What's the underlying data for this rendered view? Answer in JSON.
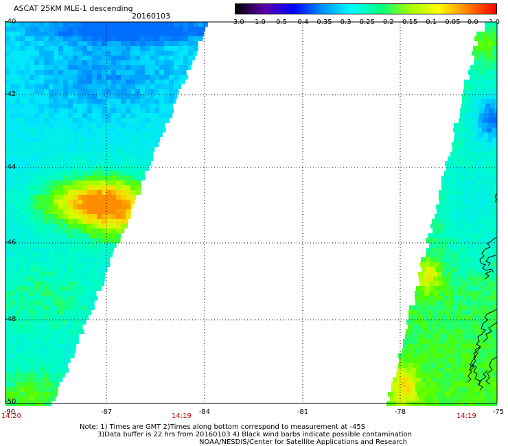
{
  "header": {
    "title": "ASCAT 25KM MLE-1 descending",
    "date": "20160103"
  },
  "colorbar": {
    "labels": [
      "-3.0",
      "-1.0",
      "-0.5",
      "-0.4",
      "-0.35",
      "-0.3",
      "-0.25",
      "-0.2",
      "-0.15",
      "-0.1",
      "-0.05",
      "0.0",
      "1.0"
    ],
    "colors": [
      "#000000",
      "#5a00a8",
      "#0000ff",
      "#0090ff",
      "#00ffff",
      "#00ff80",
      "#a0ff00",
      "#ffff00",
      "#ff8000",
      "#ff0000"
    ]
  },
  "axes": {
    "y_ticks": [
      "-40",
      "-42",
      "-44",
      "-46",
      "-48",
      "-50"
    ],
    "x_ticks": [
      "-90",
      "-87",
      "-84",
      "-81",
      "-78",
      "-75"
    ]
  },
  "times": {
    "left": "14:20",
    "middle": "14:19",
    "right": "14:19"
  },
  "notes": {
    "line1": "Note: 1) Times are GMT 2)Times along bottom correspond to measurement at -45S",
    "line2": "3)Data buffer is 22 hrs from 20160103 4) Black wind barbs indicate possible contamination",
    "line3": "NOAA/NESDIS/Center for Satellite Applications and Research"
  },
  "map": {
    "lat_range": [
      -50,
      -40
    ],
    "lon_range": [
      -90,
      -75
    ],
    "left_swath_description_free": true,
    "right_swath_description_free": true
  }
}
